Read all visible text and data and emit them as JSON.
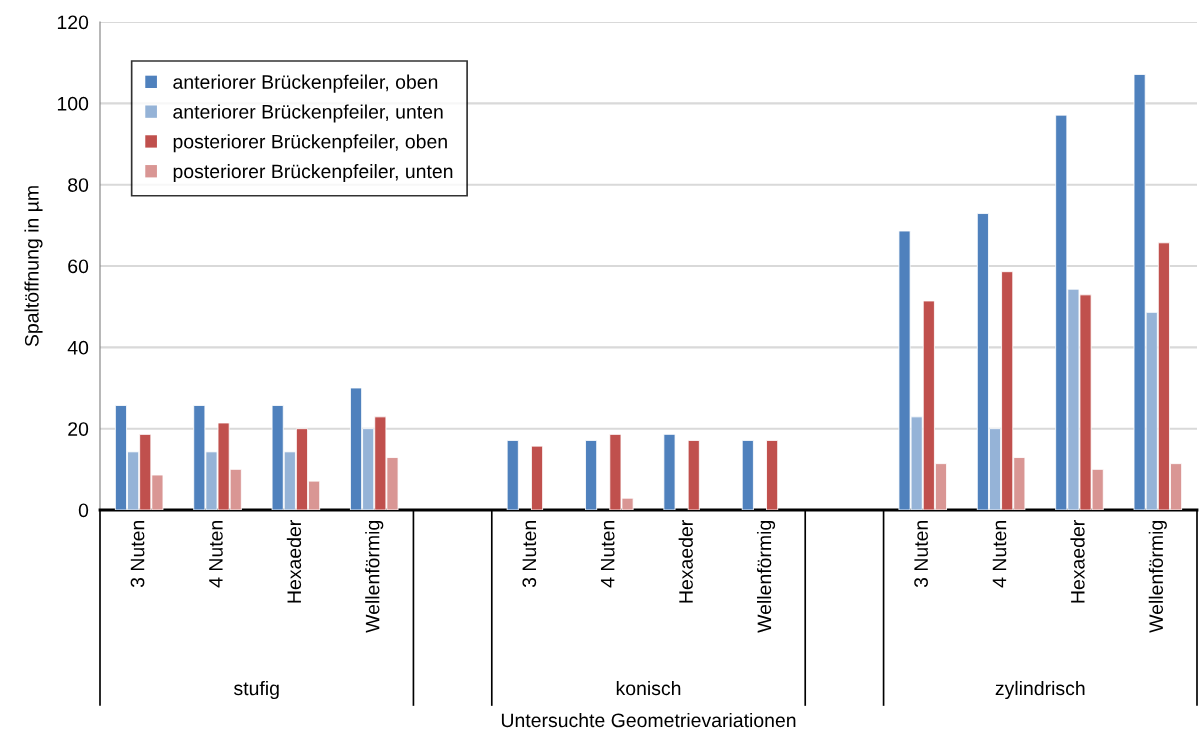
{
  "chart_data": {
    "type": "bar",
    "xlabel": "Untersuchte Geometrievariationen",
    "ylabel": "Spaltöffnung in µm",
    "categories": [
      "3 Nuten",
      "4 Nuten",
      "Hexaeder",
      "Wellenförmig",
      null,
      "3 Nuten",
      "4 Nuten",
      "Hexaeder",
      "Wellenförmig",
      null,
      "3 Nuten",
      "4 Nuten",
      "Hexaeder",
      "Wellenförmig"
    ],
    "series": [
      {
        "name": "anteriorer Brückenpfeiler, oben",
        "color": "#4f81bd",
        "values": [
          25.7,
          25.7,
          25.7,
          30,
          null,
          17.1,
          17.1,
          18.6,
          17.1,
          null,
          68.6,
          72.9,
          97.1,
          107.1
        ]
      },
      {
        "name": "anteriorer Brückenpfeiler, unten",
        "color": "#95b3d7",
        "values": [
          14.3,
          14.3,
          14.3,
          20,
          null,
          null,
          null,
          null,
          null,
          null,
          22.9,
          20,
          54.3,
          48.6
        ]
      },
      {
        "name": "posteriorer Brückenpfeiler, oben",
        "color": "#c0504d",
        "values": [
          18.6,
          21.4,
          20,
          22.9,
          null,
          15.7,
          18.6,
          17.1,
          17.1,
          null,
          51.4,
          58.6,
          52.9,
          65.7
        ]
      },
      {
        "name": "posteriorer Brückenpfeiler, unten",
        "color": "#d99694",
        "values": [
          8.6,
          10,
          7.1,
          12.9,
          null,
          null,
          2.9,
          null,
          null,
          null,
          11.4,
          12.9,
          10,
          11.4
        ]
      }
    ],
    "annotations": [
      "stufig",
      "konisch",
      "zylindrisch"
    ],
    "ylim": [
      0,
      120
    ],
    "yticks": [
      0,
      20,
      40,
      60,
      80,
      100,
      120
    ],
    "grid": "y",
    "legend": "top left"
  }
}
